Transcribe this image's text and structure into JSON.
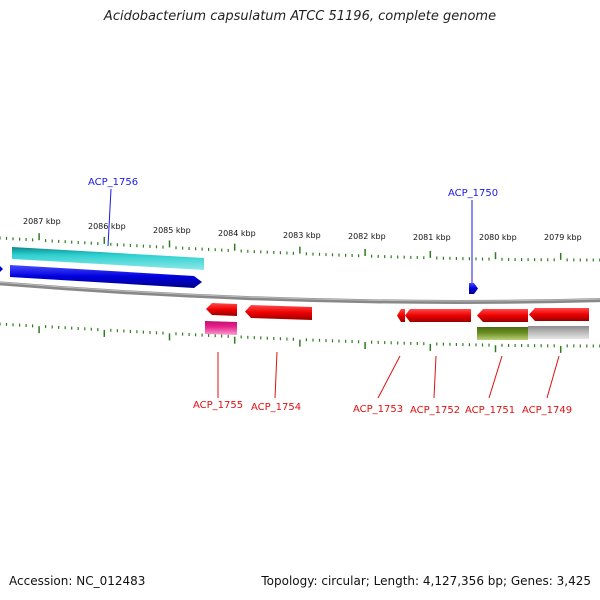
{
  "title": "Acidobacterium capsulatum ATCC 51196, complete genome",
  "accession": "Accession: NC_012483",
  "topology": "Topology: circular; Length: 4,127,356 bp; Genes: 3,425",
  "ticks": [
    "2087 kbp",
    "2086 kbp",
    "2085 kbp",
    "2084 kbp",
    "2083 kbp",
    "2082 kbp",
    "2081 kbp",
    "2080 kbp",
    "2079 kbp"
  ],
  "genes_top": [
    {
      "label": "ACP_1756",
      "color": "#0000dd"
    },
    {
      "label": "ACP_1750",
      "color": "#0000dd"
    }
  ],
  "genes_bottom": [
    {
      "label": "ACP_1755",
      "color": "#ee0000"
    },
    {
      "label": "ACP_1754",
      "color": "#ee0000"
    },
    {
      "label": "ACP_1753",
      "color": "#ee0000"
    },
    {
      "label": "ACP_1752",
      "color": "#ee0000"
    },
    {
      "label": "ACP_1751",
      "color": "#ee0000"
    },
    {
      "label": "ACP_1749",
      "color": "#ee0000"
    }
  ],
  "colors": {
    "forward_cds": "#0000dd",
    "forward_gene": "#20c8c8",
    "reverse_cds": "#ee0000",
    "reverse_gene_pink": "#e8208c",
    "olive_gene": "#6b8e23",
    "grey_gene": "#b8b8b8",
    "backbone": "#888888",
    "tick": "#2e7d1e"
  }
}
